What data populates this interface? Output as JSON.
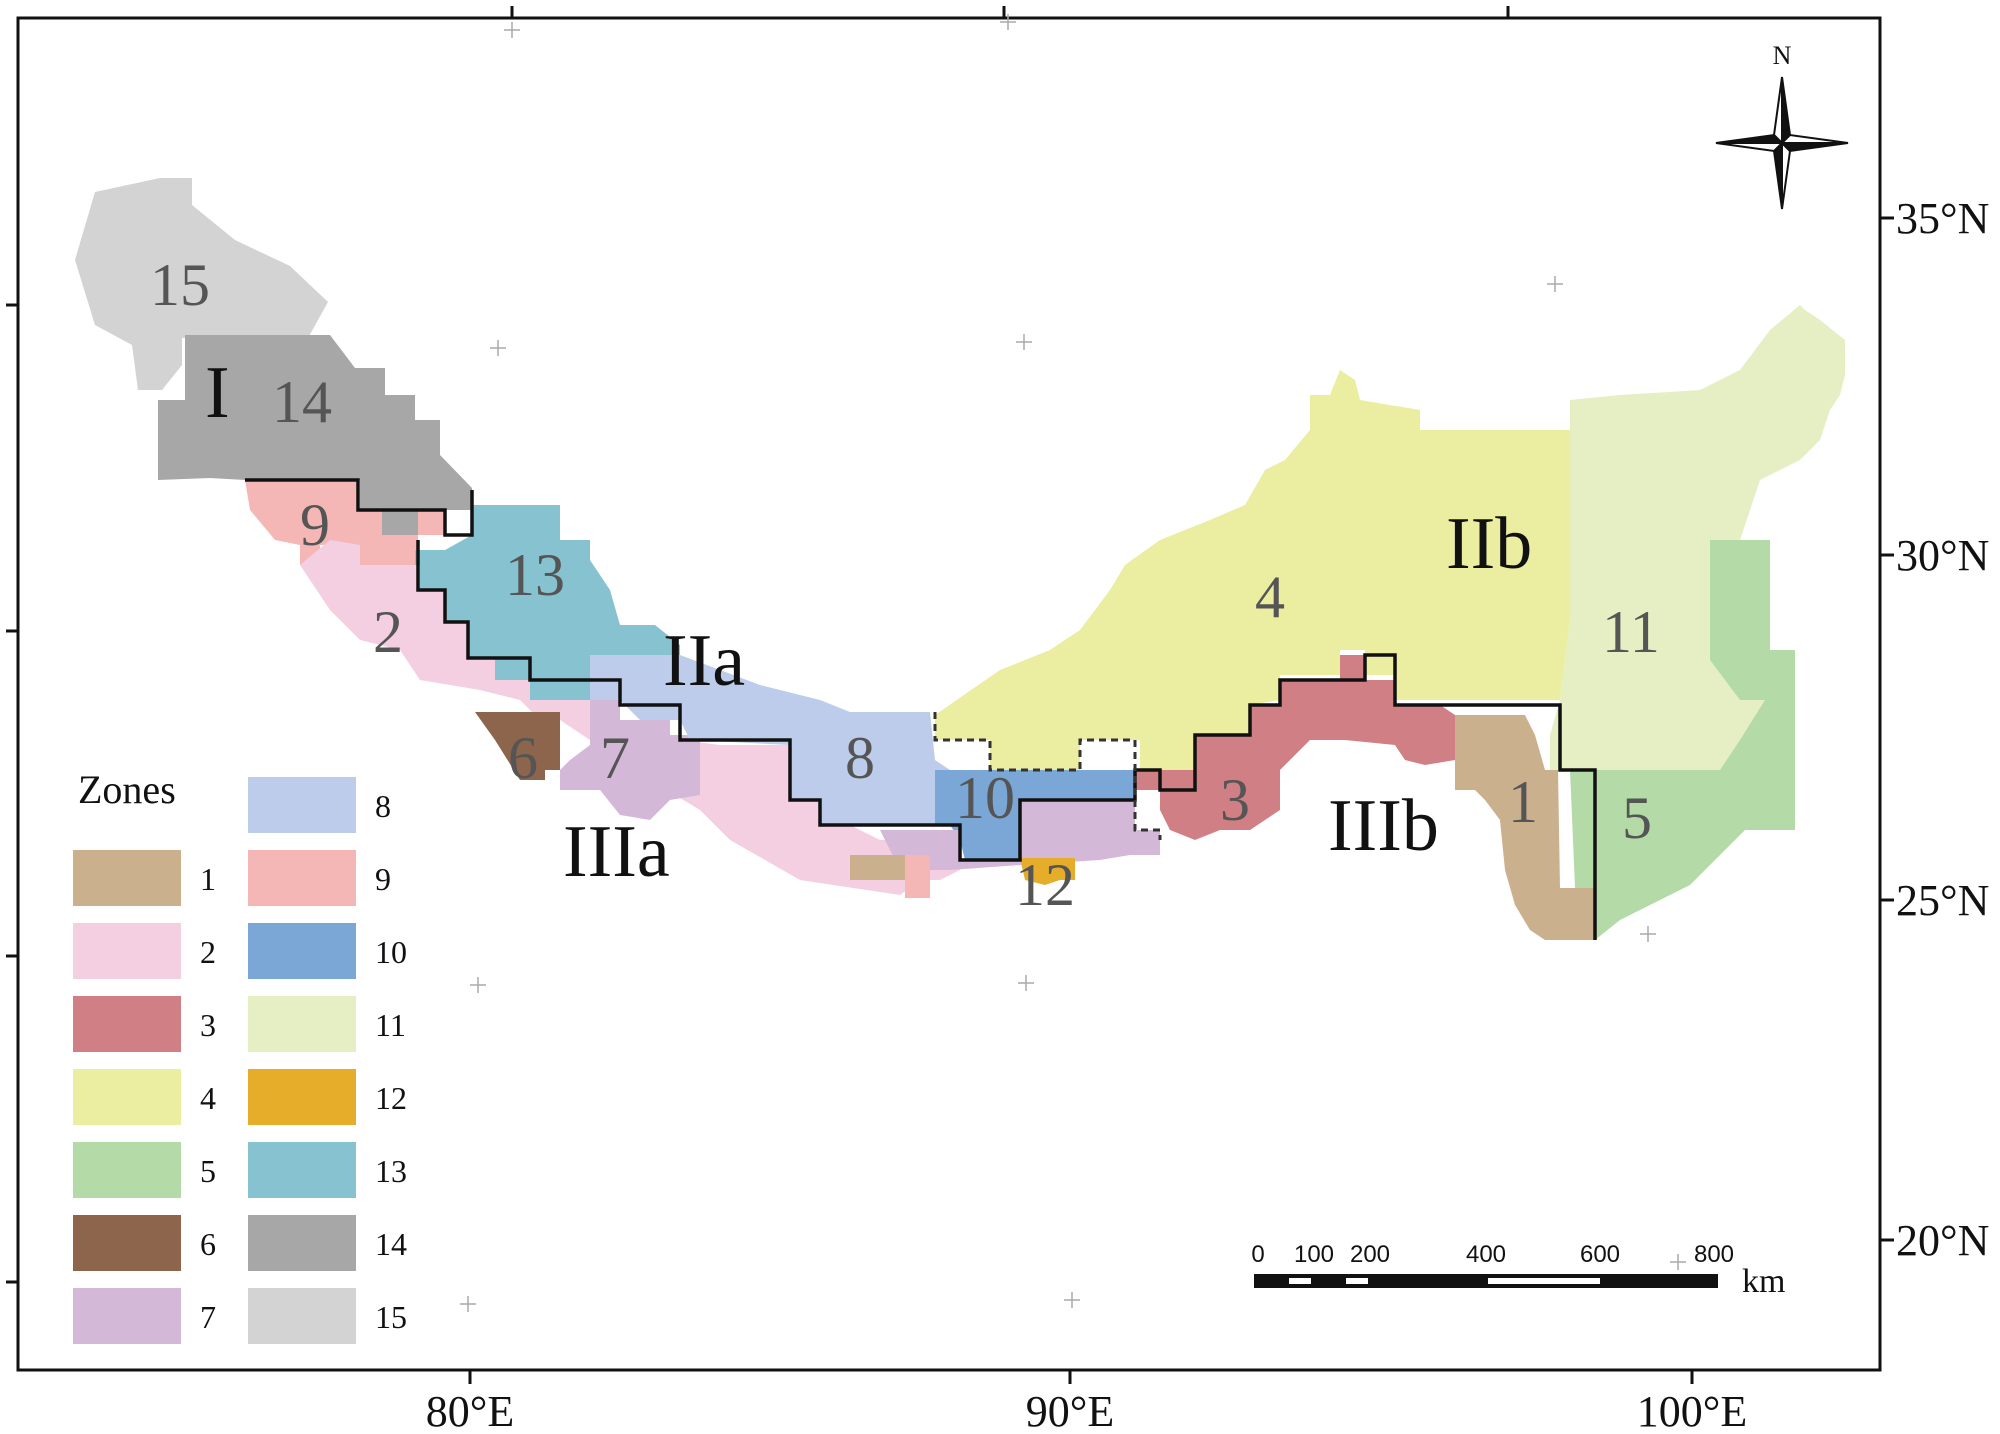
{
  "axes": {
    "x_ticks": [
      "80°E",
      "90°E",
      "100°E"
    ],
    "y_ticks": [
      "35°N",
      "30°N",
      "25°N",
      "20°N"
    ]
  },
  "north_arrow": {
    "label": "N",
    "icon": "north-arrow-compass-icon"
  },
  "regions": [
    "I",
    "IIa",
    "IIb",
    "IIIa",
    "IIIb"
  ],
  "zone_numbers": [
    "1",
    "2",
    "3",
    "4",
    "5",
    "6",
    "7",
    "8",
    "9",
    "10",
    "11",
    "12",
    "13",
    "14",
    "15"
  ],
  "legend": {
    "title": "Zones",
    "items": [
      {
        "label": "1",
        "color": "#CBB08E"
      },
      {
        "label": "2",
        "color": "#F4CFE2"
      },
      {
        "label": "3",
        "color": "#D07F84"
      },
      {
        "label": "4",
        "color": "#EBEDA0"
      },
      {
        "label": "5",
        "color": "#B4DBA7"
      },
      {
        "label": "6",
        "color": "#8C654C"
      },
      {
        "label": "7",
        "color": "#D4B8D8"
      },
      {
        "label": "8",
        "color": "#BCCCEA"
      },
      {
        "label": "9",
        "color": "#F5B7B6"
      },
      {
        "label": "10",
        "color": "#7BA7D6"
      },
      {
        "label": "11",
        "color": "#E5EFC3"
      },
      {
        "label": "12",
        "color": "#E6AD2B"
      },
      {
        "label": "13",
        "color": "#86C2D0"
      },
      {
        "label": "14",
        "color": "#A7A7A7"
      },
      {
        "label": "15",
        "color": "#D3D3D3"
      }
    ]
  },
  "scale_bar": {
    "labels": [
      "0",
      "100",
      "200",
      "400",
      "600",
      "800"
    ],
    "unit": "km"
  }
}
